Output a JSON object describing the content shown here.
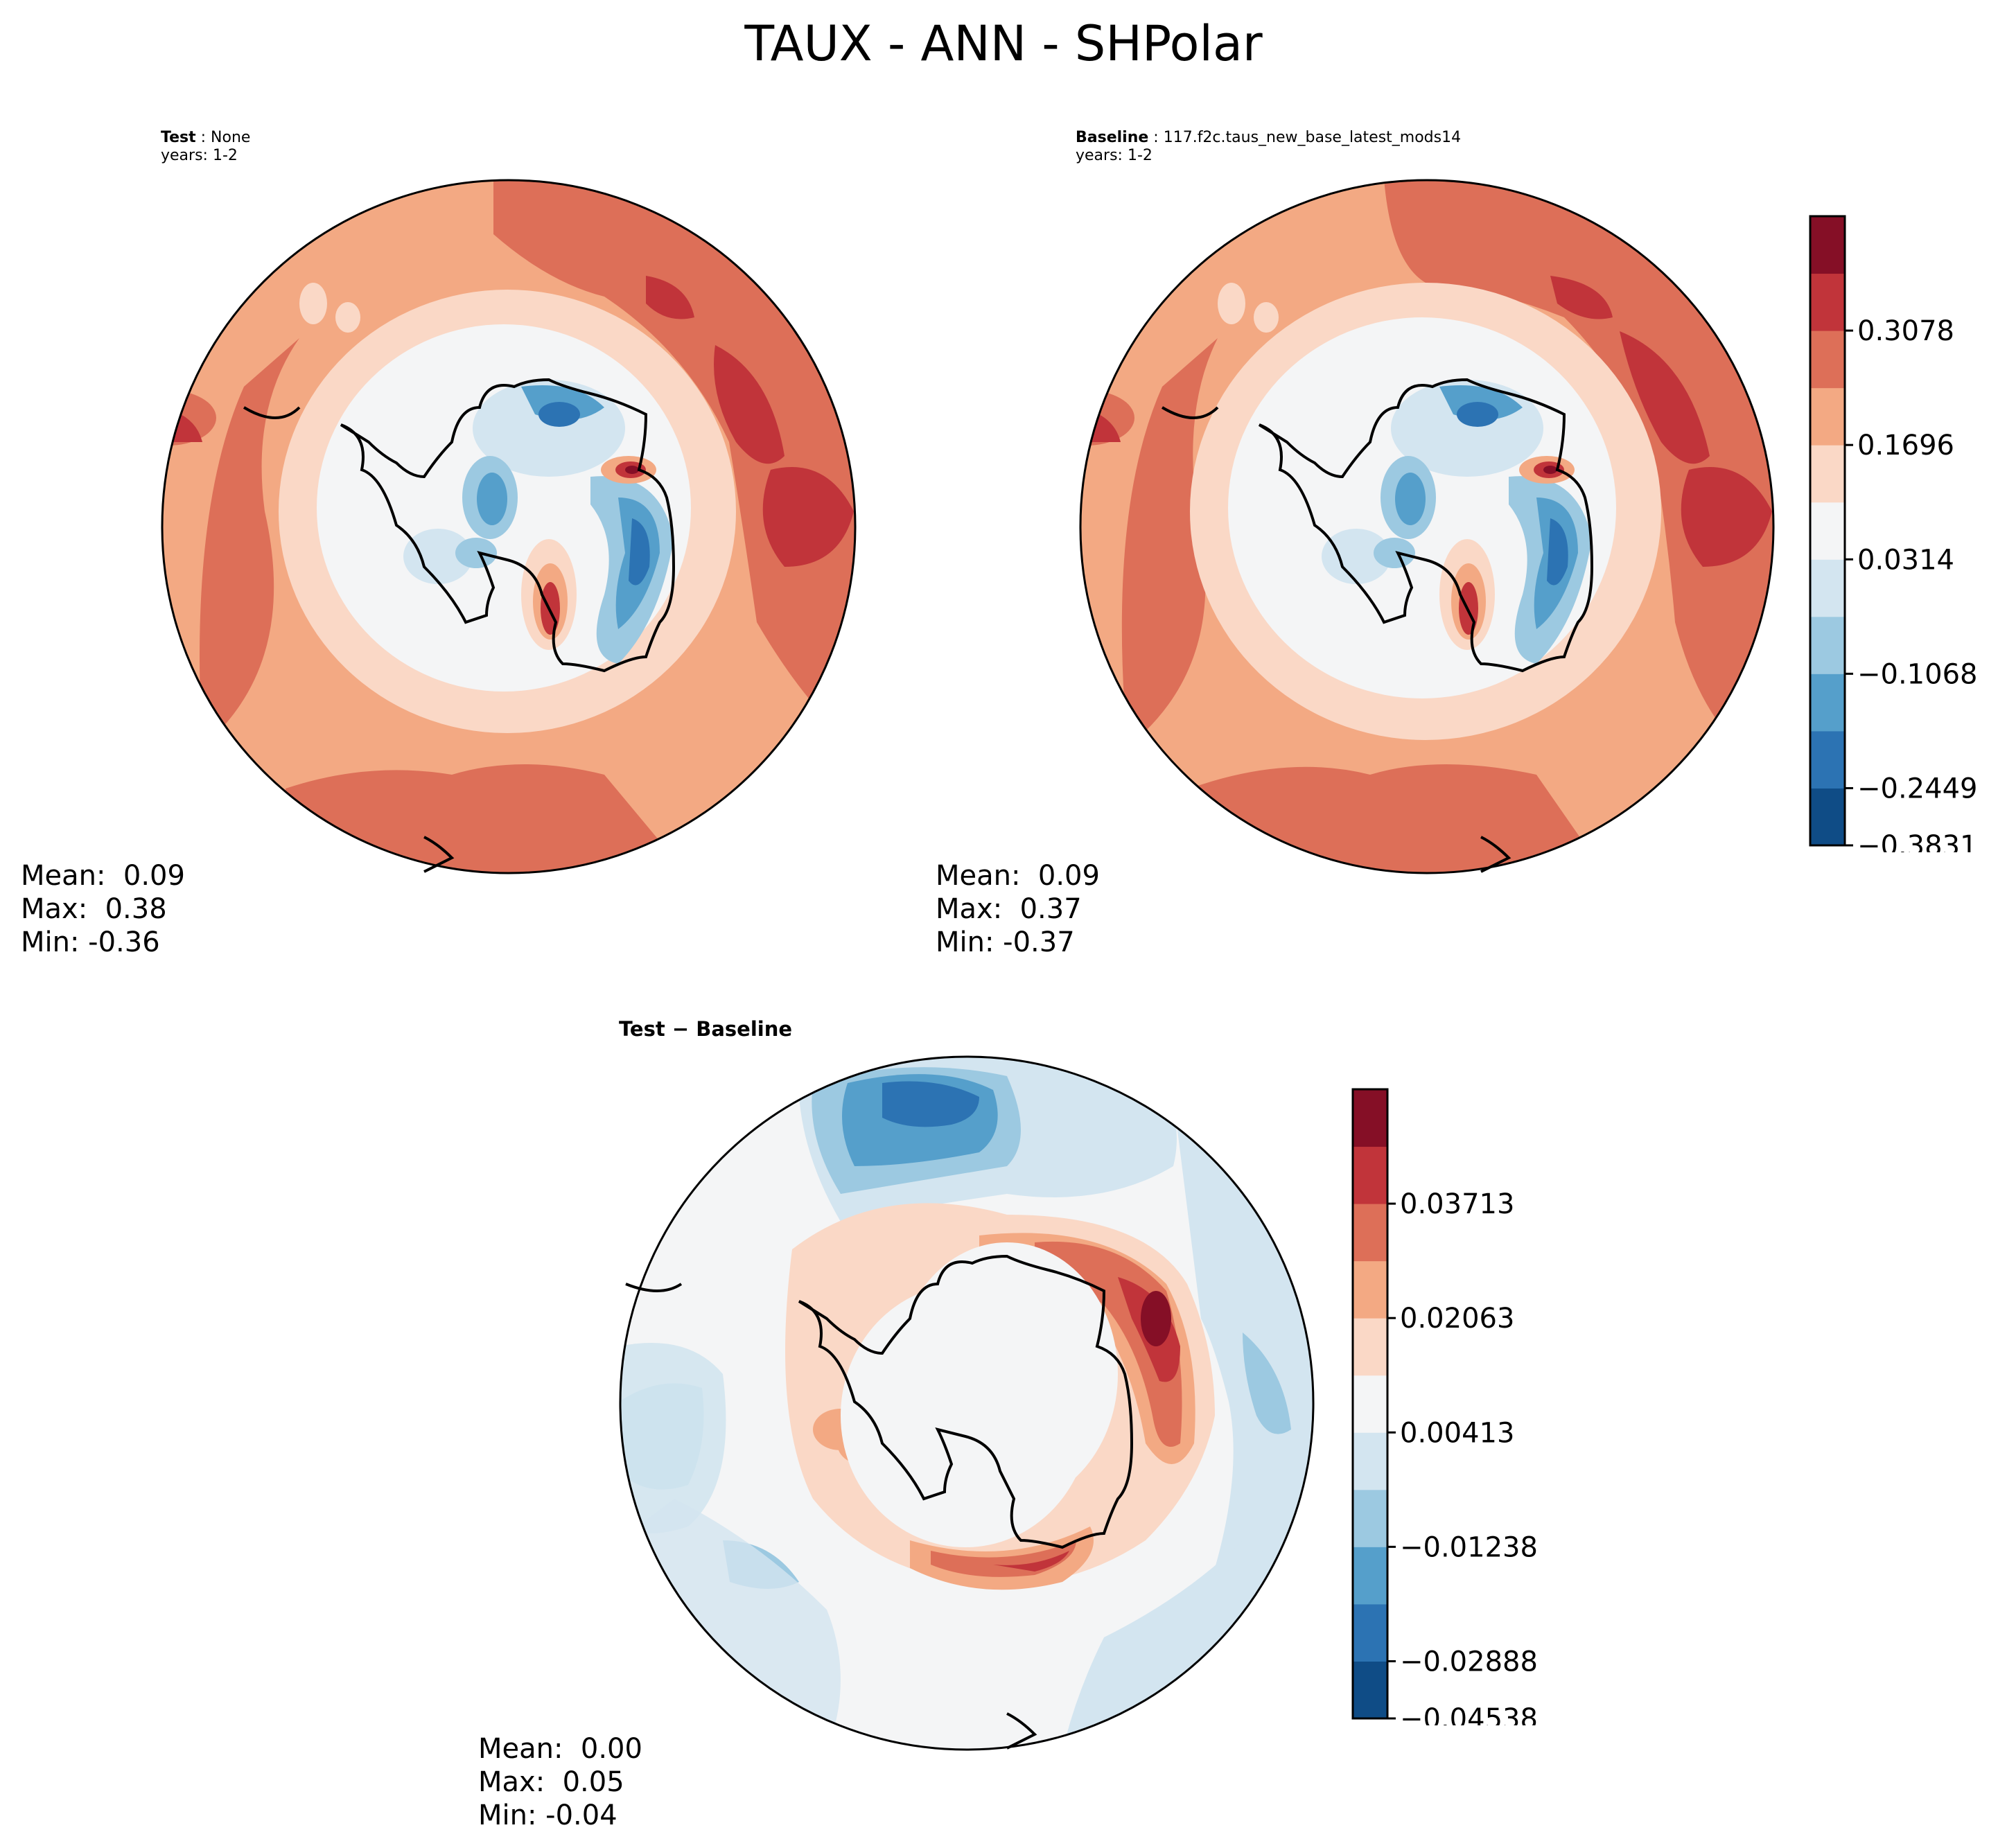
{
  "figure": {
    "title": "TAUX - ANN - SHPolar"
  },
  "panels": {
    "test": {
      "label_bold": "Test",
      "label_value": "None",
      "years": "years: 1-2",
      "stats": {
        "mean": "Mean:  0.09",
        "max": "Max:  0.38",
        "min": "Min: -0.36"
      }
    },
    "baseline": {
      "label_bold": "Baseline",
      "label_value": "117.f2c.taus_new_base_latest_mods14",
      "years": "years: 1-2",
      "stats": {
        "mean": "Mean:  0.09",
        "max": "Max:  0.37",
        "min": "Min: -0.37"
      }
    },
    "diff": {
      "title": "Test − Baseline",
      "stats": {
        "mean": "Mean:  0.00",
        "max": "Max:  0.05",
        "min": "Min: -0.04"
      }
    }
  },
  "colorbars": {
    "main": {
      "tick_labels": [
        "0.3078",
        "0.1696",
        "0.0314",
        "−0.1068",
        "−0.2449",
        "−0.3831"
      ],
      "colors": [
        "#0f4c86",
        "#2c73b3",
        "#559fcb",
        "#9cc9e1",
        "#d3e5f0",
        "#f4f5f6",
        "#fad8c6",
        "#f3a983",
        "#dd6f58",
        "#c1343a",
        "#850f26"
      ]
    },
    "diff": {
      "tick_labels": [
        "0.03713",
        "0.02063",
        "0.00413",
        "−0.01238",
        "−0.02888",
        "−0.04538"
      ],
      "colors": [
        "#0f4c86",
        "#2c73b3",
        "#559fcb",
        "#9cc9e1",
        "#d3e5f0",
        "#f4f5f6",
        "#fad8c6",
        "#f3a983",
        "#dd6f58",
        "#c1343a",
        "#850f26"
      ]
    }
  }
}
